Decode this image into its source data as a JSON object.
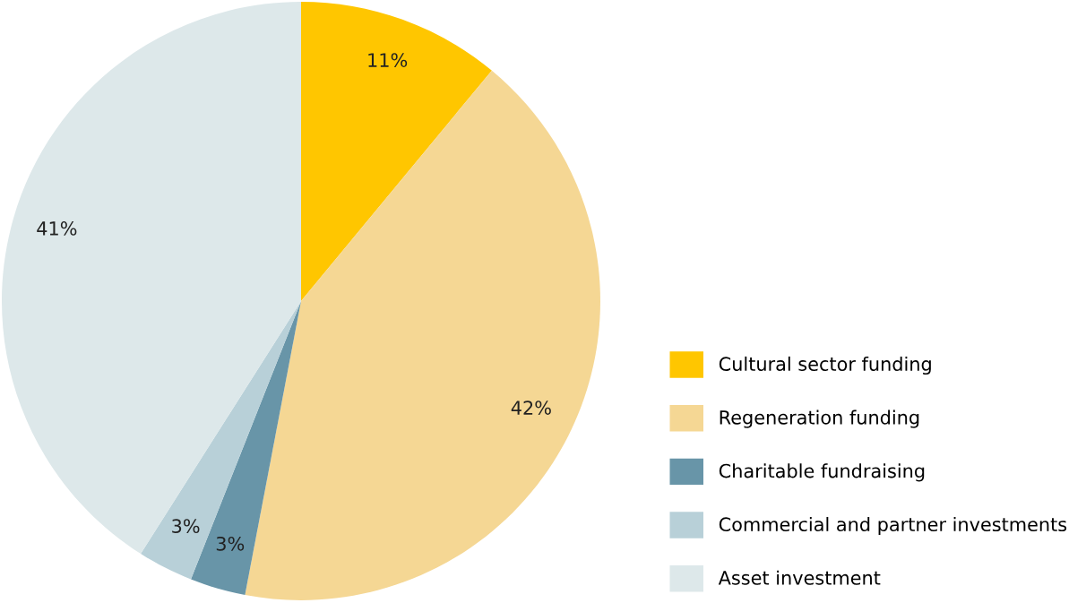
{
  "chart_data": {
    "type": "pie",
    "categories": [
      "Cultural sector funding",
      "Regeneration funding",
      "Charitable fundraising",
      "Commercial and partner investments",
      "Asset investment"
    ],
    "values": [
      11,
      42,
      3,
      3,
      41
    ],
    "colors": [
      "#ffc600",
      "#f5d794",
      "#6895a8",
      "#b8d0d8",
      "#dde8ea"
    ],
    "value_labels": [
      "11%",
      "42%",
      "3%",
      "3%",
      "41%"
    ],
    "legend": "bottom right"
  }
}
